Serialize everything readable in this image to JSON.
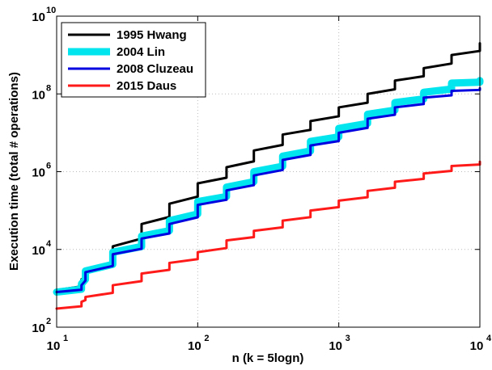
{
  "chart_data": {
    "type": "line",
    "xscale": "log",
    "yscale": "log",
    "xlim": [
      10,
      10000
    ],
    "ylim": [
      100,
      10000000000
    ],
    "xlabel": "n  (k = 5logn)",
    "ylabel": "Execution  time  (total  # operations)",
    "x_ticks": [
      {
        "base": "10",
        "exp": "1"
      },
      {
        "base": "10",
        "exp": "2"
      },
      {
        "base": "10",
        "exp": "3"
      },
      {
        "base": "10",
        "exp": "4"
      }
    ],
    "y_ticks": [
      {
        "base": "10",
        "exp": "2"
      },
      {
        "base": "10",
        "exp": "4"
      },
      {
        "base": "10",
        "exp": "6"
      },
      {
        "base": "10",
        "exp": "8"
      },
      {
        "base": "10",
        "exp": "10"
      }
    ],
    "grid": true,
    "legend_position": "top-left",
    "x": [
      10,
      15,
      16,
      25,
      40,
      63,
      100,
      160,
      250,
      400,
      630,
      1000,
      1600,
      2500,
      4000,
      6300,
      10000
    ],
    "series": [
      {
        "name": "1995 Hwang",
        "color": "#000000",
        "values": [
          900,
          1700,
          2500,
          12000,
          45000,
          150000,
          500000,
          1300000,
          3500000,
          9000000,
          20000000,
          45000000,
          100000000,
          220000000,
          460000000,
          1000000000,
          2000000000
        ]
      },
      {
        "name": "2004 Lin",
        "color": "#00e5ee",
        "values": [
          800,
          1300,
          2800,
          8500,
          22000,
          55000,
          170000,
          400000,
          1000000,
          2500000,
          6000000,
          13000000,
          30000000,
          60000000,
          110000000,
          190000000,
          220000000
        ]
      },
      {
        "name": "2008 Cluzeau",
        "color": "#0000e0",
        "values": [
          800,
          1200,
          2600,
          7500,
          19000,
          45000,
          140000,
          330000,
          800000,
          2000000,
          4700000,
          10000000,
          23000000,
          45000000,
          80000000,
          120000000,
          140000000
        ]
      },
      {
        "name": "2015 Daus",
        "color": "#ff1a1a",
        "values": [
          300,
          450,
          600,
          1200,
          2400,
          4500,
          8500,
          17000,
          30000,
          55000,
          100000,
          180000,
          320000,
          550000,
          900000,
          1400000,
          1800000
        ]
      }
    ]
  }
}
